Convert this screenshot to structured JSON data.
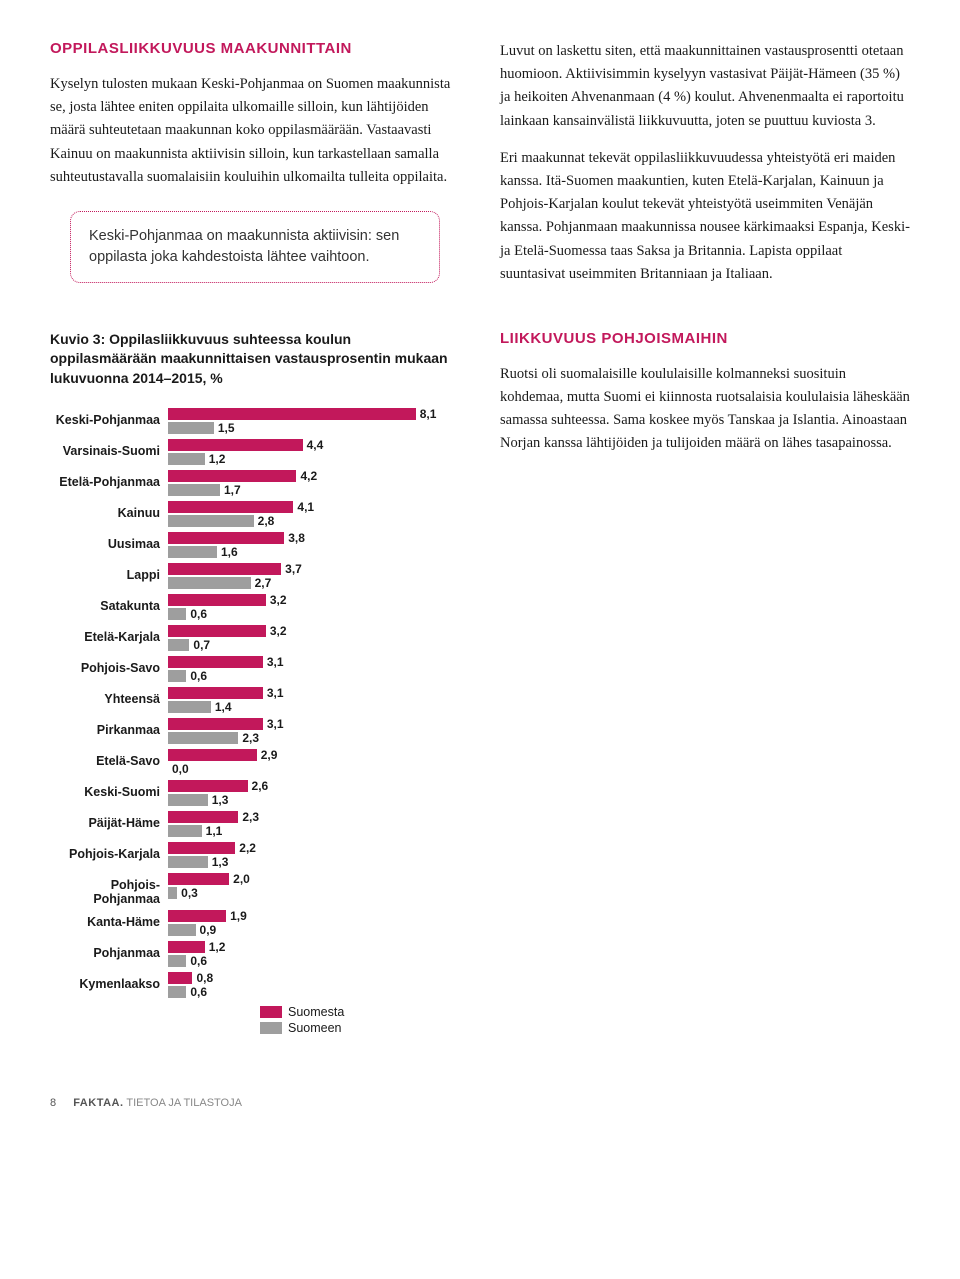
{
  "colors": {
    "accent": "#c2185b",
    "bar_a": "#c2185b",
    "bar_b": "#9e9e9e",
    "text": "#1a1a1a"
  },
  "top": {
    "left": {
      "heading": "OPPILASLIIKKUVUUS MAAKUNNITTAIN",
      "para1": "Kyselyn tulosten mukaan Keski-Pohjanmaa on Suomen maakunnista se, josta lähtee eniten oppilaita ulkomaille silloin, kun lähtijöiden määrä suhteutetaan maakunnan koko oppilasmäärään. Vastaavasti Kainuu on maakunnista aktiivisin silloin, kun tarkastellaan samalla suhteutustavalla suomalaisiin kouluihin ulkomailta tulleita oppilaita.",
      "callout": "Keski-Pohjanmaa on maakunnista aktiivisin: sen oppilasta joka kahdestoista lähtee vaihtoon."
    },
    "right": {
      "para1": "Luvut on laskettu siten, että maakunnittainen vastausprosentti otetaan huomioon. Aktiivisimmin kyselyyn vastasivat Päijät-Hämeen (35 %) ja heikoiten Ahvenanmaan (4 %) koulut. Ahvenenmaalta ei raportoitu lainkaan kansainvälistä liikkuvuutta, joten se puuttuu kuviosta 3.",
      "para2": "Eri maakunnat tekevät oppilasliikkuvuudessa yhteistyötä eri maiden kanssa. Itä-Suomen maakuntien, kuten Etelä-Karjalan, Kainuun ja Pohjois-Karjalan koulut tekevät yhteistyötä useimmiten Venäjän kanssa. Pohjanmaan maakunnissa nousee kärkimaaksi Espanja, Keski- ja Etelä-Suomessa taas Saksa ja Britannia. Lapista oppilaat suuntasivat useimmiten Britanniaan ja Italiaan."
    }
  },
  "chart": {
    "title": "Kuvio 3: Oppilasliikkuvuus suhteessa koulun oppilasmäärään maakunnittaisen vastausprosentin mukaan lukuvuonna 2014–2015, %",
    "max": 8.5,
    "bar_a_color": "#c2185b",
    "bar_b_color": "#9e9e9e",
    "rows": [
      {
        "label": "Keski-Pohjanmaa",
        "a": 8.1,
        "b": 1.5
      },
      {
        "label": "Varsinais-Suomi",
        "a": 4.4,
        "b": 1.2
      },
      {
        "label": "Etelä-Pohjanmaa",
        "a": 4.2,
        "b": 1.7
      },
      {
        "label": "Kainuu",
        "a": 4.1,
        "b": 2.8
      },
      {
        "label": "Uusimaa",
        "a": 3.8,
        "b": 1.6
      },
      {
        "label": "Lappi",
        "a": 3.7,
        "b": 2.7
      },
      {
        "label": "Satakunta",
        "a": 3.2,
        "b": 0.6
      },
      {
        "label": "Etelä-Karjala",
        "a": 3.2,
        "b": 0.7
      },
      {
        "label": "Pohjois-Savo",
        "a": 3.1,
        "b": 0.6
      },
      {
        "label": "Yhteensä",
        "a": 3.1,
        "b": 1.4
      },
      {
        "label": "Pirkanmaa",
        "a": 3.1,
        "b": 2.3
      },
      {
        "label": "Etelä-Savo",
        "a": 2.9,
        "b": 0.0
      },
      {
        "label": "Keski-Suomi",
        "a": 2.6,
        "b": 1.3
      },
      {
        "label": "Päijät-Häme",
        "a": 2.3,
        "b": 1.1
      },
      {
        "label": "Pohjois-Karjala",
        "a": 2.2,
        "b": 1.3
      },
      {
        "label": "Pohjois-Pohjanmaa",
        "a": 2.0,
        "b": 0.3
      },
      {
        "label": "Kanta-Häme",
        "a": 1.9,
        "b": 0.9
      },
      {
        "label": "Pohjanmaa",
        "a": 1.2,
        "b": 0.6
      },
      {
        "label": "Kymenlaakso",
        "a": 0.8,
        "b": 0.6
      }
    ],
    "legend": {
      "a": "Suomesta",
      "b": "Suomeen"
    }
  },
  "rightLower": {
    "heading": "LIIKKUVUUS POHJOISMAIHIN",
    "para": "Ruotsi oli suomalaisille koululaisille kolmanneksi suosituin kohdemaa, mutta Suomi ei kiinnosta ruotsalaisia koululaisia läheskään samassa suhteessa. Sama koskee myös Tanskaa ja Islantia. Ainoastaan Norjan kanssa lähtijöiden ja tulijoiden määrä on lähes tasapainossa."
  },
  "footer": {
    "page": "8",
    "bold": "FAKTAA.",
    "rest": " TIETOA JA TILASTOJA"
  }
}
